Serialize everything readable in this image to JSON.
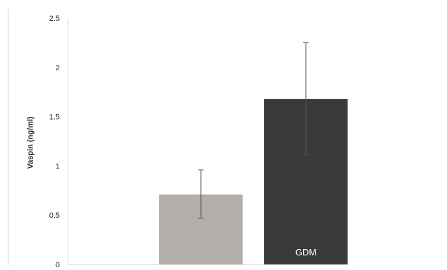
{
  "chart_data": {
    "type": "bar",
    "ylabel": "Vaspin (ng/ml)",
    "ylim": [
      0,
      2.5
    ],
    "y_ticks": [
      "0",
      "0.5",
      "1",
      "1.5",
      "2",
      "2.5"
    ],
    "grid": false,
    "categories": [
      "",
      "GDM"
    ],
    "values": [
      0.71,
      1.68
    ],
    "error_low": [
      0.47,
      1.11
    ],
    "error_high": [
      0.96,
      2.25
    ],
    "colors": [
      "#b2aeab",
      "#3a3a3a"
    ]
  }
}
